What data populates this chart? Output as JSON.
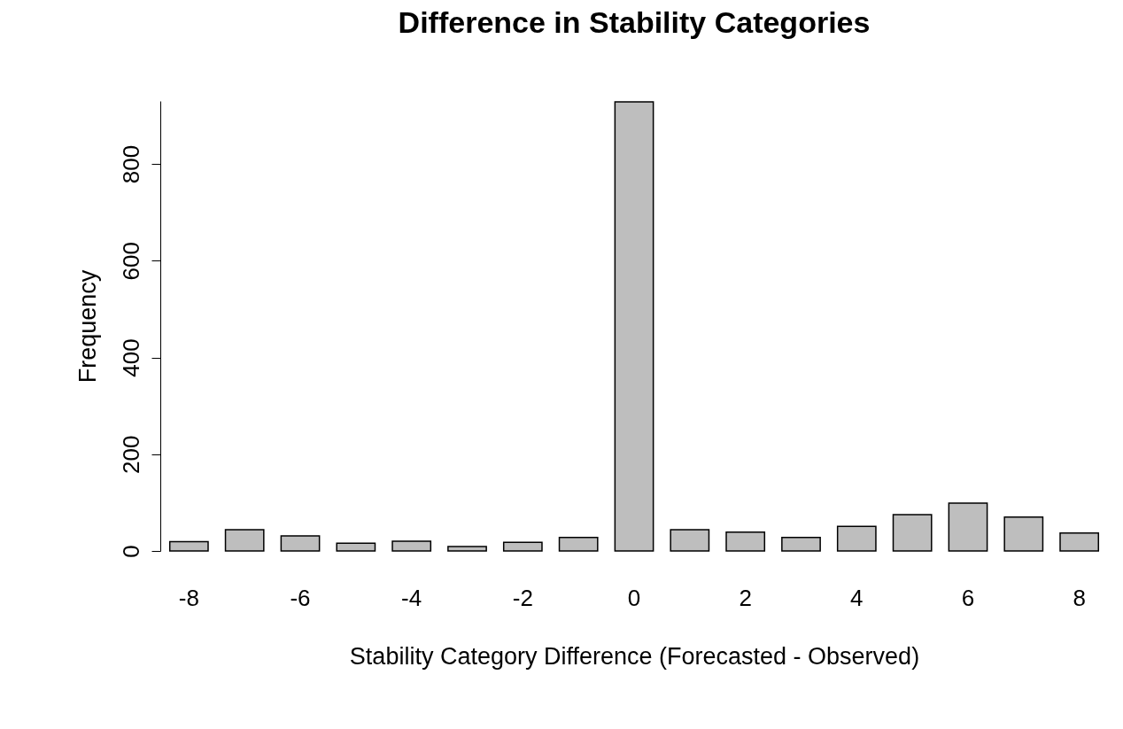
{
  "chart_data": {
    "type": "bar",
    "title": "Difference in Stability Categories",
    "xlabel": "Stability Category Difference (Forecasted - Observed)",
    "ylabel": "Frequency",
    "categories": [
      "-8",
      null,
      "-6",
      null,
      "-4",
      null,
      "-2",
      null,
      "0",
      null,
      "2",
      null,
      "4",
      null,
      "6",
      null,
      "8"
    ],
    "values": [
      19,
      44,
      31,
      16,
      20,
      9,
      18,
      28,
      928,
      44,
      39,
      28,
      51,
      75,
      99,
      70,
      37
    ],
    "color": "#bebebe",
    "ylim": [
      0,
      930
    ],
    "yticks": [
      0,
      200,
      400,
      600,
      800
    ],
    "grid": false
  }
}
